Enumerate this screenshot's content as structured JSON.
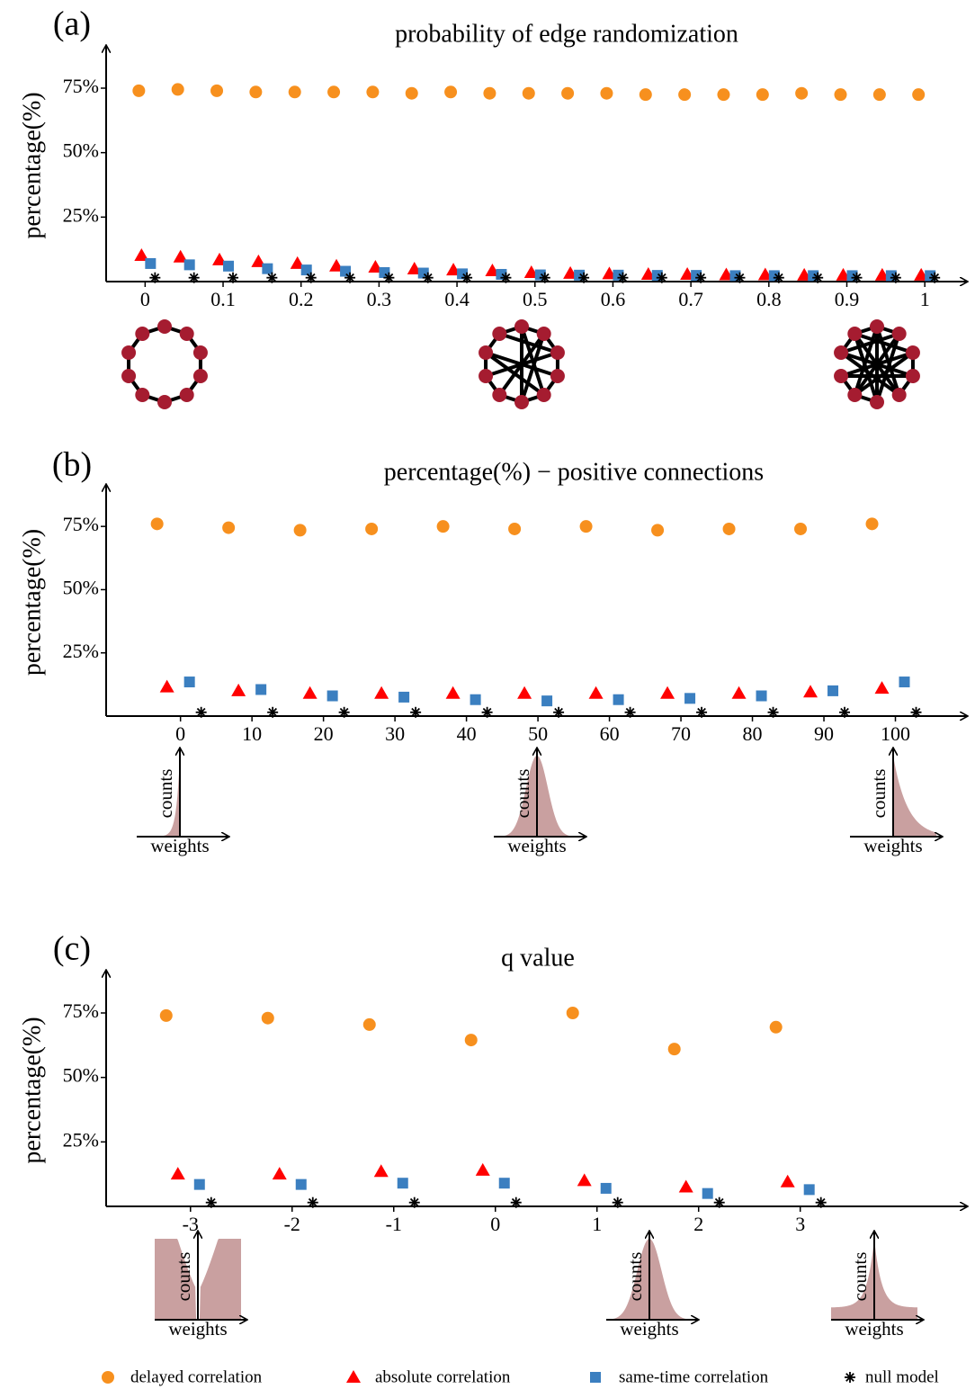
{
  "legend": [
    {
      "name": "delayed correlation",
      "color": "#f7901e",
      "marker": "circle"
    },
    {
      "name": "absolute correlation",
      "color": "#ff0000",
      "marker": "triangle"
    },
    {
      "name": "same-time correlation",
      "color": "#3b7fc0",
      "marker": "square"
    },
    {
      "name": "null model",
      "color": "#000000",
      "marker": "star"
    }
  ],
  "chart_data": [
    {
      "type": "scatter",
      "panel": "(a)",
      "title": "probability of edge randomization",
      "y_label": "percentage(%)",
      "x": [
        0,
        0.05,
        0.1,
        0.15,
        0.2,
        0.25,
        0.3,
        0.35,
        0.4,
        0.45,
        0.5,
        0.55,
        0.6,
        0.65,
        0.7,
        0.75,
        0.8,
        0.85,
        0.9,
        0.95,
        1
      ],
      "series": [
        {
          "values": [
            74,
            74.5,
            74,
            73.5,
            73.5,
            73.5,
            73.5,
            73,
            73.5,
            73,
            73,
            73,
            73,
            72.5,
            72.5,
            72.5,
            72.5,
            73,
            72.5,
            72.5,
            72.5
          ]
        },
        {
          "values": [
            10.1,
            9.5,
            8.4,
            7.7,
            7,
            6,
            5.6,
            4.9,
            4.5,
            4.2,
            3.5,
            3.2,
            3,
            2.8,
            2.8,
            2.6,
            2.6,
            2.5,
            2.5,
            2.5,
            2.5
          ]
        },
        {
          "values": [
            7,
            6.5,
            6,
            5,
            4.5,
            4,
            3.5,
            3.3,
            3,
            2.8,
            2.6,
            2.5,
            2.5,
            2.4,
            2.4,
            2.3,
            2.3,
            2.3,
            2.3,
            2.3,
            2.3
          ]
        },
        {
          "values": [
            1.5,
            1.5,
            1.5,
            1.5,
            1.5,
            1.5,
            1.5,
            1.5,
            1.5,
            1.5,
            1.5,
            1.5,
            1.5,
            1.5,
            1.5,
            1.5,
            1.5,
            1.5,
            1.5,
            1.5,
            1.5
          ]
        }
      ],
      "xlim": [
        -0.05,
        1.054
      ],
      "xticks": [
        0,
        0.1,
        0.2,
        0.3,
        0.4,
        0.5,
        0.6,
        0.7,
        0.8,
        0.9,
        1
      ],
      "ylim": [
        0,
        90
      ],
      "yticks": [
        {
          "value": 25,
          "label": "25%"
        },
        {
          "value": 50,
          "label": "50%"
        },
        {
          "value": 75,
          "label": "75%"
        }
      ]
    },
    {
      "type": "scatter",
      "panel": "(b)",
      "title": "percentage(%) − positive connections",
      "y_label": "percentage(%)",
      "x": [
        0,
        10,
        20,
        30,
        40,
        50,
        60,
        70,
        80,
        90,
        100
      ],
      "series": [
        {
          "values": [
            76,
            74.5,
            73.5,
            74,
            75,
            74,
            75,
            73.5,
            74,
            74,
            76
          ]
        },
        {
          "values": [
            11.5,
            10,
            9,
            9,
            9,
            9,
            9,
            9,
            9,
            9.5,
            11
          ]
        },
        {
          "values": [
            13.5,
            10.5,
            8,
            7.5,
            6.5,
            6,
            6.5,
            7,
            8,
            10,
            13.5
          ]
        },
        {
          "values": [
            1.5,
            1.5,
            1.5,
            1.5,
            1.5,
            1.5,
            1.5,
            1.5,
            1.5,
            1.5,
            1.5
          ]
        }
      ],
      "xlim": [
        -10.4,
        110
      ],
      "xticks": [
        0,
        10,
        20,
        30,
        40,
        50,
        60,
        70,
        80,
        90,
        100
      ],
      "ylim": [
        0,
        90
      ],
      "yticks": [
        {
          "value": 25,
          "label": "25%"
        },
        {
          "value": 50,
          "label": "50%"
        },
        {
          "value": 75,
          "label": "75%"
        }
      ],
      "insets": [
        {
          "y_label": "counts",
          "x_label": "weights"
        },
        {
          "y_label": "counts",
          "x_label": "weights"
        },
        {
          "y_label": "counts",
          "x_label": "weights"
        }
      ]
    },
    {
      "type": "scatter",
      "panel": "(c)",
      "title": "q value",
      "y_label": "percentage(%)",
      "x": [
        -3,
        -2,
        -1,
        0,
        1,
        2,
        3
      ],
      "series": [
        {
          "values": [
            74,
            73,
            70.5,
            64.5,
            75,
            61,
            69.5
          ]
        },
        {
          "values": [
            12.5,
            12.5,
            13.5,
            14,
            10,
            7.5,
            9.5
          ]
        },
        {
          "values": [
            8.5,
            8.5,
            9,
            9,
            7,
            5,
            6.5
          ]
        },
        {
          "values": [
            1.5,
            1.5,
            1.5,
            1.5,
            1.5,
            1.5,
            1.5
          ]
        }
      ],
      "xlim": [
        -3.83,
        4.64
      ],
      "xticks": [
        -3,
        -2,
        -1,
        0,
        1,
        2,
        3
      ],
      "ylim": [
        0,
        90
      ],
      "yticks": [
        {
          "value": 25,
          "label": "25%"
        },
        {
          "value": 50,
          "label": "50%"
        },
        {
          "value": 75,
          "label": "75%"
        }
      ],
      "insets": [
        {
          "y_label": "counts",
          "x_label": "weights"
        },
        {
          "y_label": "counts",
          "x_label": "weights"
        },
        {
          "y_label": "counts",
          "x_label": "weights"
        }
      ]
    }
  ]
}
